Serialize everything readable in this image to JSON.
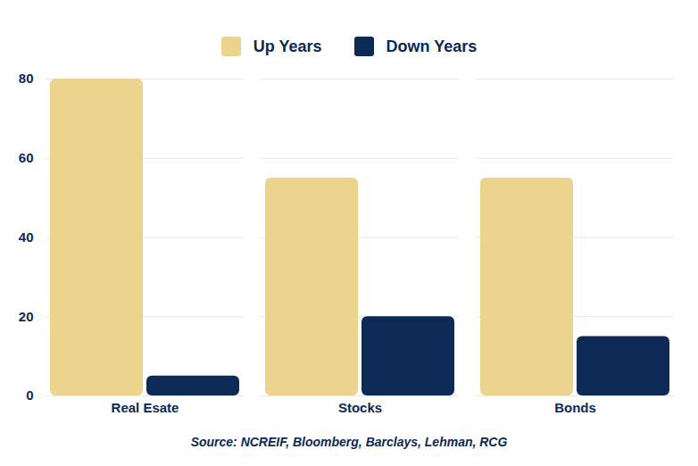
{
  "chart_data": {
    "type": "bar",
    "categories": [
      "Real Esate",
      "Stocks",
      "Bonds"
    ],
    "series": [
      {
        "name": "Up Years",
        "color": "#ecd48e",
        "values": [
          80,
          55,
          55
        ]
      },
      {
        "name": "Down Years",
        "color": "#0c2a55",
        "values": [
          5,
          20,
          15
        ]
      }
    ],
    "ylim": [
      0,
      80
    ],
    "yticks": [
      0,
      20,
      40,
      60,
      80
    ],
    "grid": true,
    "legend": "top",
    "caption": "Source: NCREIF, Bloomberg, Barclays, Lehman, RCG"
  }
}
